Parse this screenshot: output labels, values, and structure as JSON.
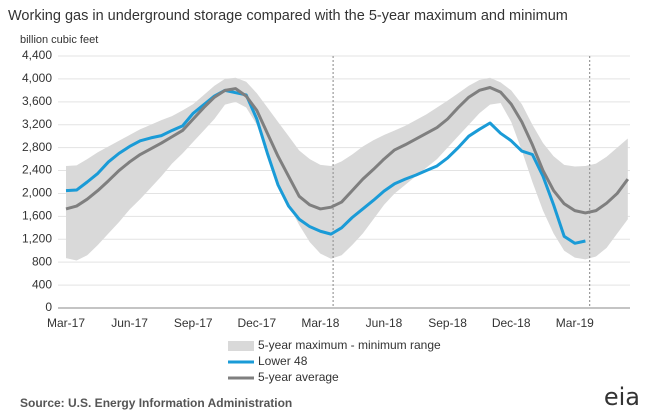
{
  "chart_data": {
    "type": "line",
    "title": "Working gas in underground storage compared with the 5-year maximum and minimum",
    "y_axis_label": "billion cubic feet",
    "source": "Source:  U.S. Energy Information Administration",
    "logo": "eia",
    "categories": [
      "Mar-17",
      null,
      null,
      null,
      null,
      null,
      "Jun-17",
      null,
      null,
      null,
      null,
      null,
      "Sep-17",
      null,
      null,
      null,
      null,
      null,
      "Dec-17",
      null,
      null,
      null,
      null,
      null,
      "Mar-18",
      null,
      null,
      null,
      null,
      null,
      "Jun-18",
      null,
      null,
      null,
      null,
      null,
      "Sep-18",
      null,
      null,
      null,
      null,
      null,
      "Dec-18",
      null,
      null,
      null,
      null,
      null,
      "Mar-19",
      null,
      null,
      null,
      null,
      null
    ],
    "ylim": [
      0,
      4400
    ],
    "yticks": [
      0,
      400,
      800,
      {
        "value": 1200,
        "label": "1,200"
      },
      {
        "value": 1600,
        "label": "1,600"
      },
      {
        "value": 2000,
        "label": "2,000"
      },
      {
        "value": 2400,
        "label": "2,400"
      },
      {
        "value": 2800,
        "label": "2,800"
      },
      {
        "value": 3200,
        "label": "3,200"
      },
      {
        "value": 3600,
        "label": "3,600"
      },
      {
        "value": 4000,
        "label": "4,000"
      },
      {
        "value": 4400,
        "label": "4,400"
      }
    ],
    "grid": true,
    "range": {
      "name": "5-year maximum - minimum range",
      "color": "#d9d9d9",
      "max": [
        2480,
        2490,
        2600,
        2720,
        2820,
        2920,
        3020,
        3120,
        3200,
        3280,
        3350,
        3450,
        3560,
        3720,
        3880,
        4000,
        4020,
        3950,
        3750,
        3500,
        3250,
        3000,
        2750,
        2600,
        2500,
        2480,
        2560,
        2680,
        2820,
        2930,
        3020,
        3100,
        3180,
        3280,
        3380,
        3500,
        3620,
        3750,
        3880,
        3980,
        4020,
        3940,
        3800,
        3560,
        3200,
        2880,
        2650,
        2500,
        2470,
        2480,
        2520,
        2640,
        2800,
        2960
      ],
      "min": [
        870,
        830,
        920,
        1100,
        1300,
        1500,
        1720,
        1900,
        2100,
        2300,
        2520,
        2700,
        2900,
        3100,
        3300,
        3550,
        3600,
        3500,
        3200,
        2700,
        2200,
        1800,
        1450,
        1150,
        950,
        860,
        920,
        1100,
        1300,
        1550,
        1800,
        2000,
        2150,
        2300,
        2450,
        2600,
        2800,
        3000,
        3200,
        3400,
        3550,
        3580,
        3250,
        2750,
        2200,
        1700,
        1300,
        1000,
        880,
        850,
        900,
        1050,
        1300,
        1550
      ]
    },
    "series": [
      {
        "name": "Lower 48",
        "color": "#1a9bd7",
        "values": [
          2050,
          2060,
          2200,
          2350,
          2550,
          2700,
          2820,
          2920,
          2970,
          3010,
          3100,
          3180,
          3400,
          3550,
          3700,
          3800,
          3760,
          3720,
          3300,
          2700,
          2150,
          1780,
          1550,
          1420,
          1340,
          1290,
          1400,
          1580,
          1730,
          1880,
          2040,
          2170,
          2250,
          2320,
          2400,
          2480,
          2620,
          2800,
          3000,
          3120,
          3230,
          3050,
          2920,
          2740,
          2680,
          2300,
          1800,
          1250,
          1130,
          1170,
          null,
          null,
          null,
          null
        ]
      },
      {
        "name": "5-year average",
        "color": "#7f7f7f",
        "values": [
          1730,
          1780,
          1900,
          2050,
          2220,
          2400,
          2550,
          2680,
          2780,
          2880,
          2990,
          3100,
          3300,
          3500,
          3680,
          3800,
          3830,
          3700,
          3450,
          3050,
          2650,
          2300,
          1950,
          1800,
          1730,
          1760,
          1850,
          2050,
          2250,
          2420,
          2600,
          2760,
          2850,
          2950,
          3050,
          3150,
          3300,
          3500,
          3680,
          3800,
          3850,
          3770,
          3560,
          3250,
          2850,
          2400,
          2050,
          1820,
          1700,
          1660,
          1700,
          1830,
          2000,
          2250
        ]
      }
    ]
  }
}
